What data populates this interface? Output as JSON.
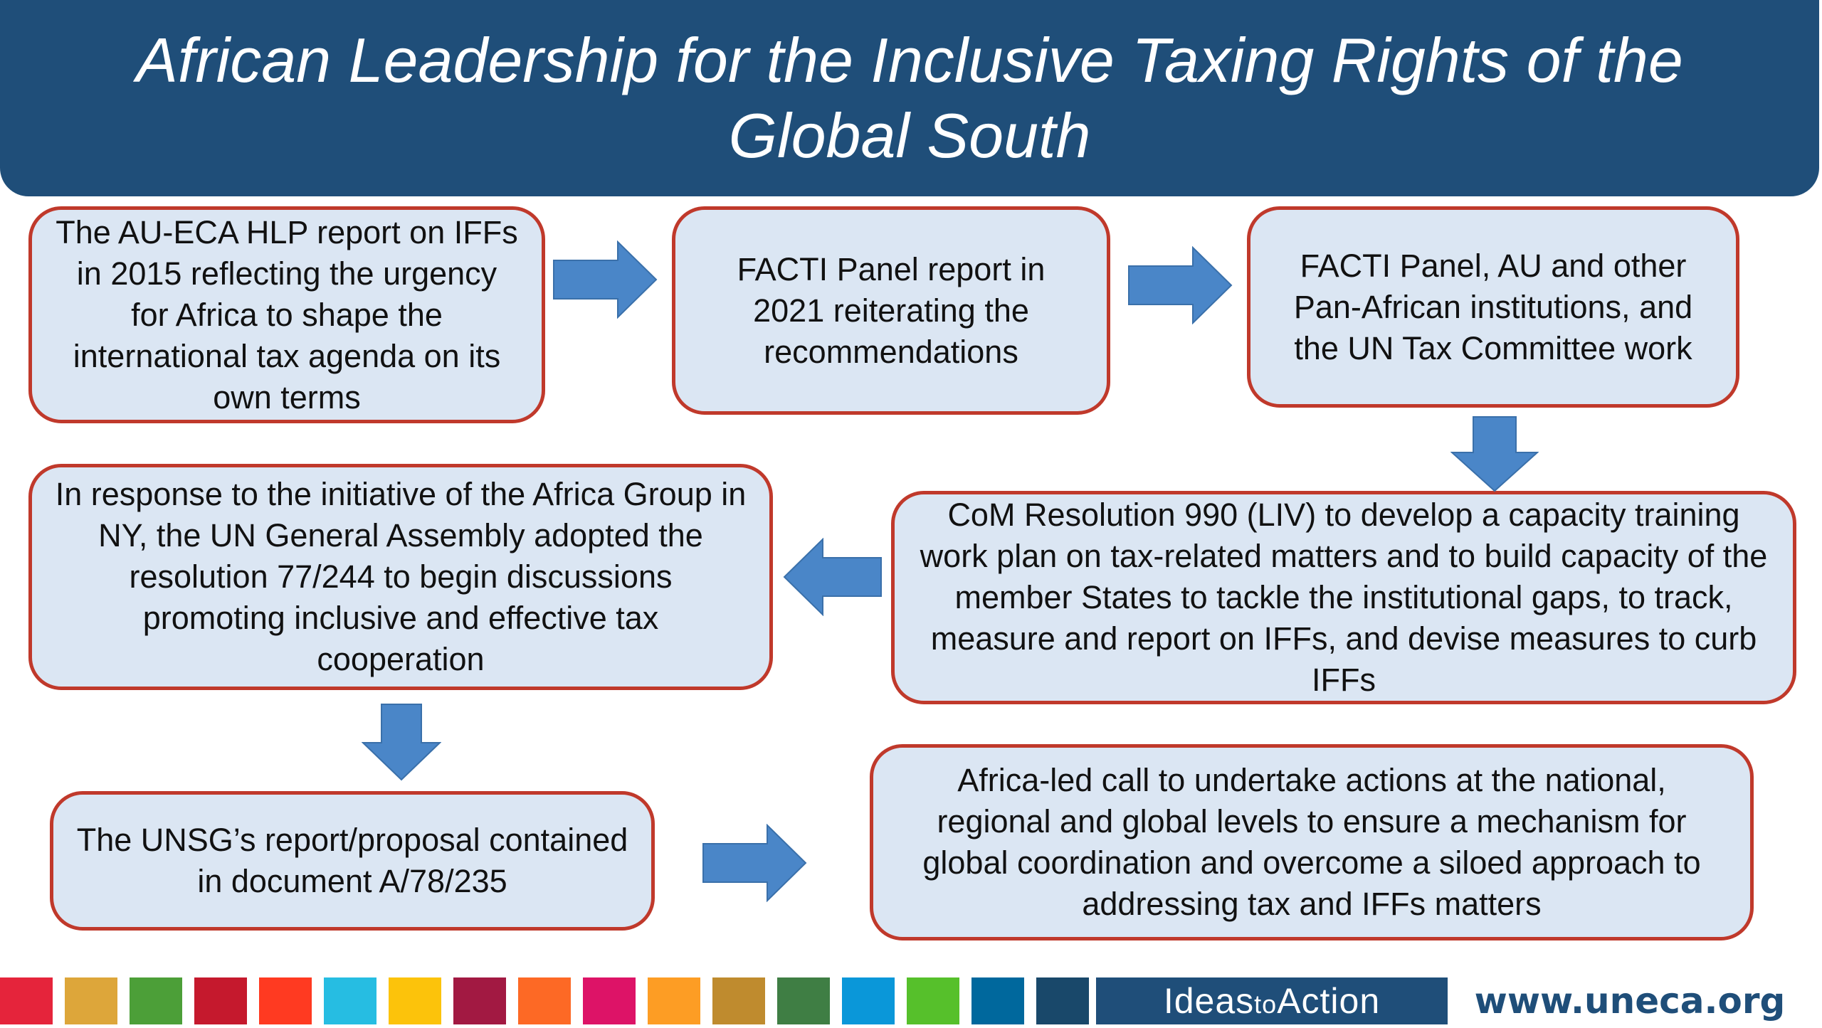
{
  "title": "African Leadership for the Inclusive Taxing Rights of the Global South",
  "boxes": {
    "hlp_report": "The AU-ECA HLP report on IFFs in 2015 reflecting the urgency for Africa to shape the international tax agenda on its own terms",
    "facti_report": "FACTI Panel report in 2021 reiterating the recommendations",
    "facti_au_un": "FACTI Panel,  AU and other Pan-African institutions, and the UN Tax Committee work",
    "com_resolution": "CoM Resolution 990 (LIV) to develop a capacity training work plan on tax-related matters and to build capacity of the member States to tackle the institutional gaps, to track, measure and report on IFFs, and devise measures to curb IFFs",
    "unga_resolution": "In response to the initiative of the Africa Group in NY, the UN General Assembly adopted the resolution 77/244 to begin discussions promoting inclusive and effective tax cooperation",
    "unsg_report": "The UNSG’s report/proposal contained in document A/78/235",
    "africa_call": "Africa-led call to undertake actions at the national, regional and global levels to ensure a mechanism for global coordination and overcome a siloed approach to addressing tax and IFFs matters"
  },
  "footer": {
    "ideas": "Ideas",
    "to": "to",
    "action": "Action",
    "url": "www.uneca.org",
    "sdg_colors": [
      "#e5243b",
      "#dda63a",
      "#4c9f38",
      "#c5192d",
      "#ff3a21",
      "#26bde2",
      "#fcc30b",
      "#a21942",
      "#fd6925",
      "#dd1367",
      "#fd9d24",
      "#bf8b2e",
      "#3f7e44",
      "#0a97d9",
      "#56c02b",
      "#00689d",
      "#19486a"
    ]
  },
  "colors": {
    "title_bg": "#1f4e79",
    "box_fill": "#dbe6f3",
    "box_border": "#c0392b",
    "arrow_fill": "#4a86c8"
  }
}
